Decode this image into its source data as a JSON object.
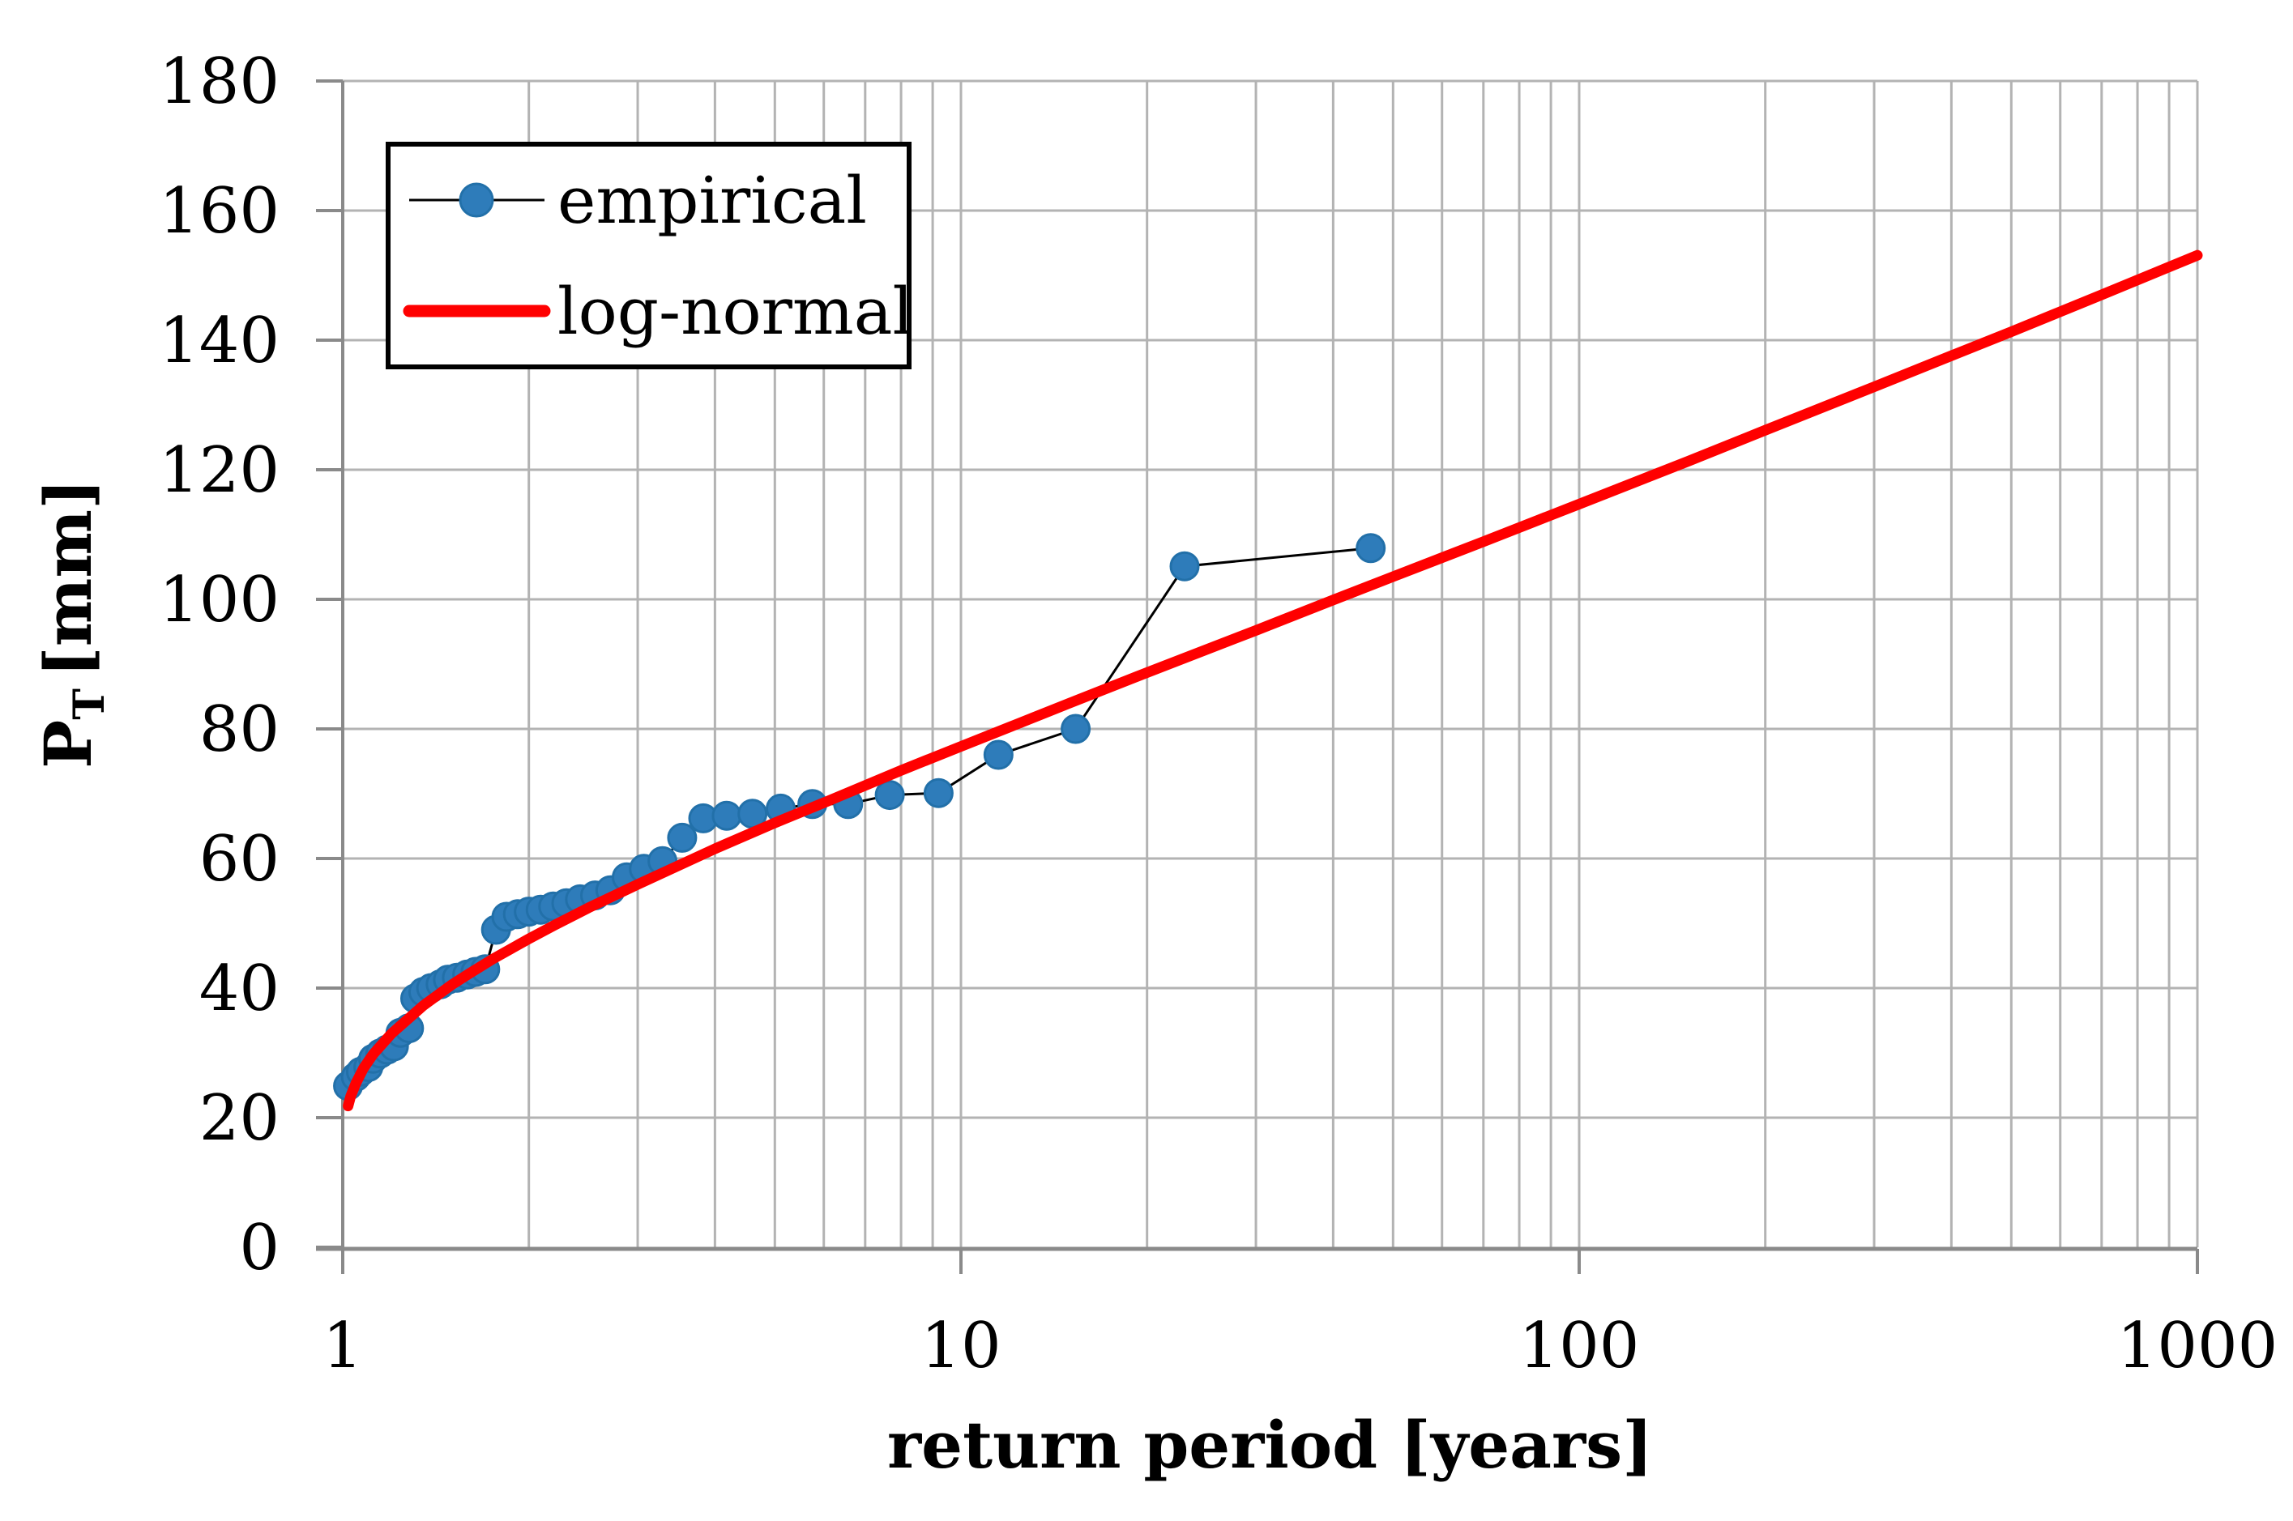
{
  "figure": {
    "background": "#ffffff",
    "colors": {
      "gridline": "#b3b3b3",
      "axis": "#8a8a8a",
      "text": "#000000",
      "empirical_marker_fill": "#2e7cba",
      "empirical_marker_stroke": "#2270a9",
      "empirical_line": "#000000",
      "lognormal_line": "#ff0000",
      "legend_border": "#000000",
      "legend_fill": "#ffffff"
    },
    "x_axis": {
      "title": "return period [years]",
      "scale": "log",
      "min": 1,
      "max": 1000,
      "ticks": [
        1,
        10,
        100,
        1000
      ],
      "tick_labels": [
        "1",
        "10",
        "100",
        "1000"
      ],
      "minor_grid": true
    },
    "y_axis": {
      "title_main": "P",
      "title_sub": "T",
      "title_unit": "[mm]",
      "scale": "linear",
      "min": 0,
      "max": 180,
      "tick_step": 20,
      "ticks": [
        0,
        20,
        40,
        60,
        80,
        100,
        120,
        140,
        160,
        180
      ],
      "tick_labels": [
        "0",
        "20",
        "40",
        "60",
        "80",
        "100",
        "120",
        "140",
        "160",
        "180"
      ]
    },
    "legend": {
      "position": "upper-left",
      "items": [
        {
          "label": "empirical",
          "marker": "dot-with-line",
          "color": "#2e7cba"
        },
        {
          "label": "log-normal",
          "marker": "thick-line",
          "color": "#ff0000"
        }
      ]
    }
  },
  "chart_data": {
    "type": "line",
    "title": "",
    "xlabel": "return period [years]",
    "ylabel": "P_T [mm]",
    "x_scale": "log",
    "xlim": [
      1,
      1000
    ],
    "ylim": [
      0,
      180
    ],
    "grid": true,
    "legend_position": "upper-left",
    "series": [
      {
        "name": "empirical",
        "style": "scatter-with-thin-line",
        "marker_color": "#2e7cba",
        "line_color": "#000000",
        "points": [
          [
            1.02,
            24.9
          ],
          [
            1.05,
            26.3
          ],
          [
            1.07,
            27.1
          ],
          [
            1.1,
            27.8
          ],
          [
            1.12,
            29.1
          ],
          [
            1.15,
            29.9
          ],
          [
            1.18,
            30.5
          ],
          [
            1.21,
            31.0
          ],
          [
            1.24,
            33.1
          ],
          [
            1.28,
            33.8
          ],
          [
            1.31,
            38.4
          ],
          [
            1.35,
            39.4
          ],
          [
            1.39,
            40.0
          ],
          [
            1.44,
            40.6
          ],
          [
            1.48,
            41.3
          ],
          [
            1.53,
            41.6
          ],
          [
            1.59,
            42.1
          ],
          [
            1.64,
            42.5
          ],
          [
            1.7,
            42.9
          ],
          [
            1.77,
            49.0
          ],
          [
            1.84,
            51.0
          ],
          [
            1.92,
            51.4
          ],
          [
            2.0,
            51.8
          ],
          [
            2.09,
            52.1
          ],
          [
            2.19,
            52.6
          ],
          [
            2.3,
            53.1
          ],
          [
            2.42,
            53.7
          ],
          [
            2.56,
            54.3
          ],
          [
            2.71,
            55.1
          ],
          [
            2.88,
            57.1
          ],
          [
            3.07,
            58.4
          ],
          [
            3.29,
            59.6
          ],
          [
            3.54,
            63.2
          ],
          [
            3.83,
            66.2
          ],
          [
            4.18,
            66.6
          ],
          [
            4.6,
            66.9
          ],
          [
            5.11,
            67.7
          ],
          [
            5.75,
            68.4
          ],
          [
            6.57,
            68.4
          ],
          [
            7.67,
            69.8
          ],
          [
            9.2,
            70.1
          ],
          [
            11.5,
            76.0
          ],
          [
            15.33,
            80.0
          ],
          [
            23.0,
            105.1
          ],
          [
            46.0,
            107.9
          ]
        ]
      },
      {
        "name": "log-normal",
        "style": "thick-line",
        "line_color": "#ff0000",
        "points": [
          [
            1.02,
            21.8
          ],
          [
            1.03,
            23.3
          ],
          [
            1.05,
            25.3
          ],
          [
            1.08,
            27.6
          ],
          [
            1.12,
            29.8
          ],
          [
            1.2,
            33.0
          ],
          [
            1.35,
            37.3
          ],
          [
            1.5,
            40.5
          ],
          [
            1.6,
            42.2
          ],
          [
            1.75,
            44.5
          ],
          [
            2.0,
            47.6
          ],
          [
            2.2,
            49.7
          ],
          [
            2.5,
            52.4
          ],
          [
            3.0,
            56.0
          ],
          [
            4.0,
            61.5
          ],
          [
            5.0,
            65.5
          ],
          [
            6.0,
            68.6
          ],
          [
            8.0,
            73.6
          ],
          [
            10,
            77.3
          ],
          [
            12,
            80.3
          ],
          [
            15,
            84.0
          ],
          [
            20,
            88.7
          ],
          [
            30,
            95.2
          ],
          [
            40,
            99.9
          ],
          [
            50,
            103.5
          ],
          [
            70,
            108.9
          ],
          [
            100,
            114.7
          ],
          [
            150,
            121.3
          ],
          [
            200,
            126.1
          ],
          [
            300,
            132.8
          ],
          [
            400,
            137.6
          ],
          [
            500,
            141.3
          ],
          [
            700,
            147.0
          ],
          [
            1000,
            153.1
          ]
        ]
      }
    ]
  }
}
